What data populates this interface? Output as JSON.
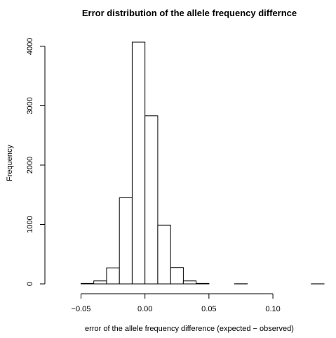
{
  "chart_data": {
    "type": "bar",
    "title": "Error distribution of the allele frequency differnce",
    "xlabel": "error of the allele frequency difference (expected − observed)",
    "ylabel": "Frequency",
    "bins": [
      {
        "x0": -0.07,
        "x1": -0.06,
        "count": 0
      },
      {
        "x0": -0.06,
        "x1": -0.05,
        "count": 0
      },
      {
        "x0": -0.05,
        "x1": -0.04,
        "count": 8
      },
      {
        "x0": -0.04,
        "x1": -0.03,
        "count": 50
      },
      {
        "x0": -0.03,
        "x1": -0.02,
        "count": 270
      },
      {
        "x0": -0.02,
        "x1": -0.01,
        "count": 1450
      },
      {
        "x0": -0.01,
        "x1": 0.0,
        "count": 4070
      },
      {
        "x0": 0.0,
        "x1": 0.01,
        "count": 2830
      },
      {
        "x0": 0.01,
        "x1": 0.02,
        "count": 990
      },
      {
        "x0": 0.02,
        "x1": 0.03,
        "count": 275
      },
      {
        "x0": 0.03,
        "x1": 0.04,
        "count": 50
      },
      {
        "x0": 0.04,
        "x1": 0.05,
        "count": 8
      },
      {
        "x0": 0.05,
        "x1": 0.06,
        "count": 0
      },
      {
        "x0": 0.06,
        "x1": 0.07,
        "count": 0
      },
      {
        "x0": 0.07,
        "x1": 0.08,
        "count": 2
      },
      {
        "x0": 0.08,
        "x1": 0.09,
        "count": 0
      },
      {
        "x0": 0.09,
        "x1": 0.1,
        "count": 0
      },
      {
        "x0": 0.1,
        "x1": 0.11,
        "count": 0
      },
      {
        "x0": 0.11,
        "x1": 0.12,
        "count": 0
      },
      {
        "x0": 0.12,
        "x1": 0.13,
        "count": 0
      },
      {
        "x0": 0.13,
        "x1": 0.14,
        "count": 1
      }
    ],
    "xticks": [
      {
        "value": -0.05,
        "label": "−0.05"
      },
      {
        "value": 0.0,
        "label": "0.00"
      },
      {
        "value": 0.05,
        "label": "0.05"
      },
      {
        "value": 0.1,
        "label": "0.10"
      }
    ],
    "yticks": [
      {
        "value": 0,
        "label": "0"
      },
      {
        "value": 1000,
        "label": "1000"
      },
      {
        "value": 2000,
        "label": "2000"
      },
      {
        "value": 3000,
        "label": "3000"
      },
      {
        "value": 4000,
        "label": "4000"
      }
    ],
    "xlim": [
      -0.07,
      0.14
    ],
    "ylim": [
      0,
      4070
    ],
    "grid": false,
    "legend": "none"
  }
}
